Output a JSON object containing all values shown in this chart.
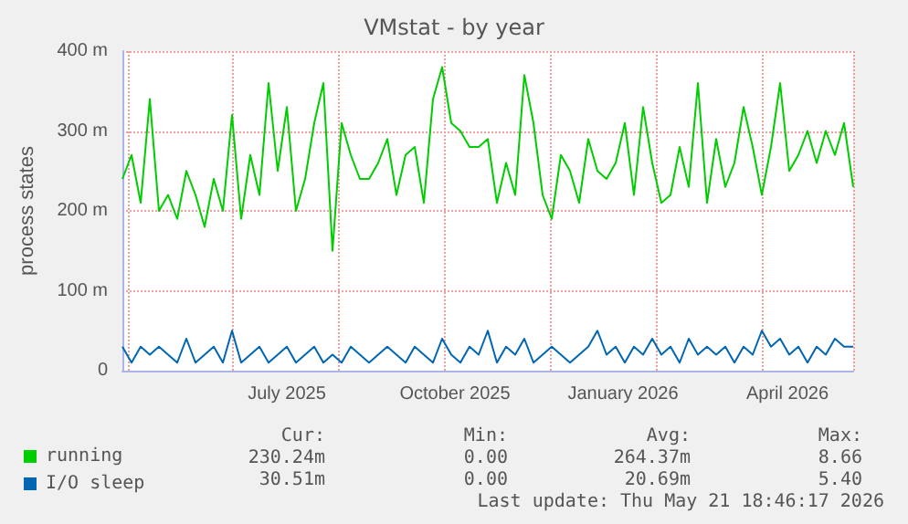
{
  "chart_data": {
    "type": "line",
    "title": "VMstat - by year",
    "ylabel": "process states",
    "x": [
      "2025-04-16",
      "2025-04-21",
      "2025-04-26",
      "2025-05-01",
      "2025-05-06",
      "2025-05-11",
      "2025-05-16",
      "2025-05-21",
      "2025-05-26",
      "2025-05-31",
      "2025-06-05",
      "2025-06-10",
      "2025-06-15",
      "2025-06-20",
      "2025-06-25",
      "2025-06-30",
      "2025-07-05",
      "2025-07-10",
      "2025-07-15",
      "2025-07-20",
      "2025-07-25",
      "2025-07-30",
      "2025-08-04",
      "2025-08-09",
      "2025-08-14",
      "2025-08-19",
      "2025-08-24",
      "2025-08-29",
      "2025-09-03",
      "2025-09-08",
      "2025-09-13",
      "2025-09-18",
      "2025-09-23",
      "2025-09-28",
      "2025-10-03",
      "2025-10-08",
      "2025-10-13",
      "2025-10-18",
      "2025-10-23",
      "2025-10-28",
      "2025-11-02",
      "2025-11-07",
      "2025-11-12",
      "2025-11-17",
      "2025-11-22",
      "2025-11-27",
      "2025-12-02",
      "2025-12-07",
      "2025-12-12",
      "2025-12-17",
      "2025-12-22",
      "2025-12-27",
      "2026-01-01",
      "2026-01-06",
      "2026-01-11",
      "2026-01-16",
      "2026-01-21",
      "2026-01-26",
      "2026-01-31",
      "2026-02-05",
      "2026-02-10",
      "2026-02-15",
      "2026-02-20",
      "2026-02-25",
      "2026-03-02",
      "2026-03-07",
      "2026-03-12",
      "2026-03-17",
      "2026-03-22",
      "2026-03-27",
      "2026-04-01",
      "2026-04-06",
      "2026-04-11",
      "2026-04-16",
      "2026-04-21",
      "2026-04-26",
      "2026-05-01",
      "2026-05-06",
      "2026-05-11",
      "2026-05-16",
      "2026-05-21"
    ],
    "series": [
      {
        "name": "running",
        "color": "#00cc00",
        "values": [
          240,
          270,
          210,
          340,
          200,
          220,
          190,
          250,
          220,
          180,
          240,
          200,
          320,
          190,
          270,
          220,
          360,
          250,
          330,
          200,
          240,
          310,
          360,
          150,
          310,
          270,
          240,
          240,
          260,
          290,
          220,
          270,
          280,
          210,
          340,
          380,
          310,
          300,
          280,
          280,
          290,
          210,
          260,
          220,
          370,
          310,
          220,
          190,
          270,
          250,
          210,
          290,
          250,
          240,
          260,
          310,
          220,
          330,
          260,
          210,
          220,
          280,
          230,
          360,
          210,
          290,
          230,
          260,
          330,
          280,
          220,
          280,
          360,
          250,
          270,
          300,
          260,
          300,
          270,
          310,
          230
        ]
      },
      {
        "name": "I/O sleep",
        "color": "#0066b3",
        "values": [
          30,
          10,
          30,
          20,
          30,
          20,
          10,
          40,
          10,
          20,
          30,
          10,
          50,
          10,
          20,
          30,
          10,
          20,
          30,
          10,
          20,
          30,
          10,
          20,
          10,
          30,
          20,
          10,
          20,
          30,
          20,
          10,
          30,
          20,
          10,
          40,
          20,
          10,
          30,
          20,
          50,
          10,
          30,
          20,
          40,
          10,
          20,
          30,
          20,
          10,
          20,
          30,
          50,
          20,
          30,
          10,
          30,
          20,
          40,
          20,
          30,
          10,
          40,
          20,
          30,
          20,
          30,
          10,
          30,
          20,
          50,
          30,
          40,
          20,
          30,
          10,
          30,
          20,
          40,
          30,
          30
        ]
      }
    ],
    "xlim": [
      "2025-04-16",
      "2026-05-21"
    ],
    "xticks": [
      {
        "value": "2025-07-15",
        "label": "July 2025"
      },
      {
        "value": "2025-10-15",
        "label": "October 2025"
      },
      {
        "value": "2026-01-15",
        "label": "January 2026"
      },
      {
        "value": "2026-04-15",
        "label": "April 2026"
      }
    ],
    "ylim": [
      0,
      400
    ],
    "yticks": [
      0,
      {
        "value": 100,
        "label": "100 m"
      },
      {
        "value": 200,
        "label": "200 m"
      },
      {
        "value": 300,
        "label": "300 m"
      },
      {
        "value": 400,
        "label": "400 m"
      }
    ],
    "grid": true,
    "legend": "bottom",
    "marker": "none",
    "line_style": "solid",
    "annotations": [
      "Cur:",
      "Min:",
      "Avg:",
      "Max:",
      "230.24m",
      "0.00",
      "264.37m",
      "8.66",
      "30.51m",
      "0.00",
      "20.69m",
      "5.40",
      "Last update: Thu May 21 18:46:17 2026"
    ]
  }
}
